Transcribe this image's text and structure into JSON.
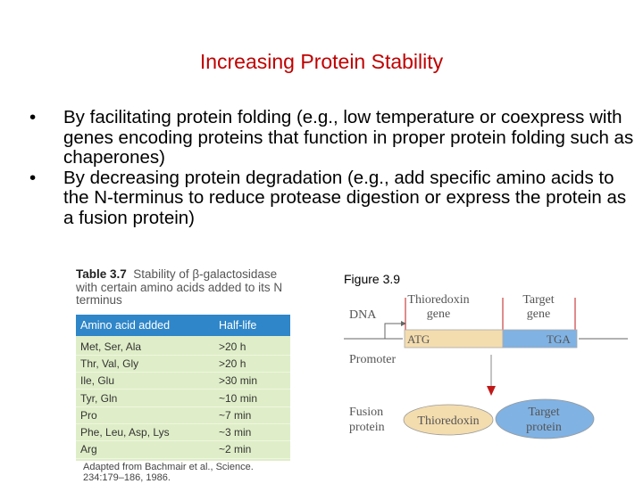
{
  "slide": {
    "title": "Increasing Protein Stability",
    "bullets": [
      "By facilitating protein folding (e.g., low temperature or coexpress with genes encoding proteins that function in proper protein folding such as chaperones)",
      "By decreasing protein degradation (e.g., add specific amino acids to the N-terminus to reduce protease digestion or express the protein as a fusion protein)"
    ],
    "bullet_glyph": "•"
  },
  "table": {
    "number": "Table 3.7",
    "caption": "Stability of β-galactosidase with certain amino acids added to its N terminus",
    "columns": [
      "Amino acid added",
      "Half-life"
    ],
    "rows": [
      [
        "Met, Ser, Ala",
        ">20 h"
      ],
      [
        "Thr, Val, Gly",
        ">20 h"
      ],
      [
        "Ile, Glu",
        ">30 min"
      ],
      [
        "Tyr, Gln",
        "~10 min"
      ],
      [
        "Pro",
        "~7 min"
      ],
      [
        "Phe, Leu, Asp, Lys",
        "~3 min"
      ],
      [
        "Arg",
        "~2 min"
      ]
    ],
    "source_line1": "Adapted from Bachmair et al., Science.",
    "source_line2": "234:179–186, 1986.",
    "colors": {
      "header": "#2f86c8",
      "body": "#dfeec8"
    }
  },
  "figure": {
    "label": "Figure 3.9",
    "gene1_label_1": "Thioredoxin",
    "gene1_label_2": "gene",
    "gene2_label_1": "Target",
    "gene2_label_2": "gene",
    "dna": "DNA",
    "promoter": "Promoter",
    "start_codon": "ATG",
    "stop_codon": "TGA",
    "fusion_1": "Fusion",
    "fusion_2": "protein",
    "thioredoxin": "Thioredoxin",
    "target_protein_1": "Target",
    "target_protein_2": "protein",
    "colors": {
      "thioredoxin": "#f3dcae",
      "target": "#80b2e3",
      "arrow": "#c01818"
    }
  }
}
